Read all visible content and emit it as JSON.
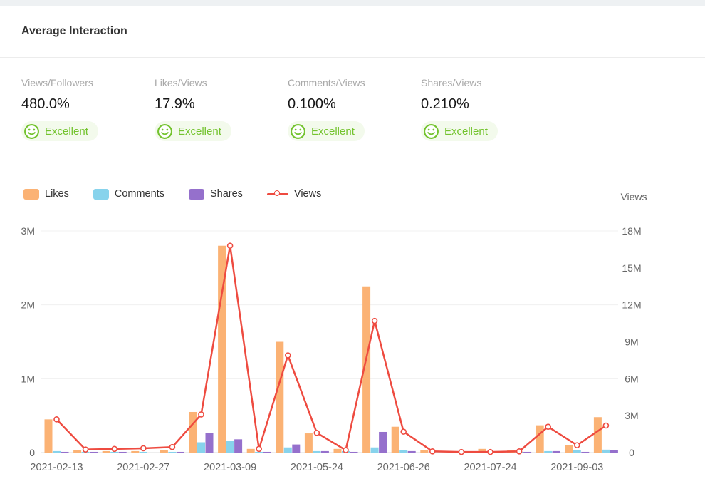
{
  "header": {
    "title": "Average Interaction"
  },
  "stats": [
    {
      "label": "Views/Followers",
      "value": "480.0%",
      "rating": "Excellent"
    },
    {
      "label": "Likes/Views",
      "value": "17.9%",
      "rating": "Excellent"
    },
    {
      "label": "Comments/Views",
      "value": "0.100%",
      "rating": "Excellent"
    },
    {
      "label": "Shares/Views",
      "value": "0.210%",
      "rating": "Excellent"
    }
  ],
  "colors": {
    "likes": "#fbb274",
    "comments": "#87d3ec",
    "shares": "#9570cc",
    "views": "#ee4b40",
    "positive": "#74c32f",
    "badge_bg": "#f3faec",
    "grid": "#f0f0f0",
    "axis_line": "#dcdcdc",
    "tick_text": "#666666"
  },
  "chart_data": {
    "type": "bar",
    "note": "grouped bars on left axis + line on right axis, values in millions",
    "legend": [
      "Likes",
      "Comments",
      "Shares",
      "Views"
    ],
    "legend_position": "top-left",
    "grid": true,
    "categories": [
      "2021-02-13",
      "",
      "",
      "2021-02-27",
      "",
      "",
      "2021-03-09",
      "",
      "",
      "2021-05-24",
      "",
      "",
      "2021-06-26",
      "",
      "",
      "2021-07-24",
      "",
      "",
      "2021-09-03",
      ""
    ],
    "series": [
      {
        "name": "Likes",
        "type": "bar",
        "axis": "left",
        "unit": "M",
        "values": [
          0.45,
          0.03,
          0.02,
          0.02,
          0.03,
          0.55,
          2.8,
          0.05,
          1.5,
          0.26,
          0.05,
          2.25,
          0.35,
          0.03,
          0.01,
          0.05,
          0.03,
          0.37,
          0.1,
          0.48
        ]
      },
      {
        "name": "Comments",
        "type": "bar",
        "axis": "left",
        "unit": "M",
        "values": [
          0.02,
          0.01,
          0.01,
          0.01,
          0.01,
          0.14,
          0.16,
          0.01,
          0.07,
          0.02,
          0.02,
          0.07,
          0.03,
          0,
          0,
          0.01,
          0.01,
          0.02,
          0.03,
          0.04
        ]
      },
      {
        "name": "Shares",
        "type": "bar",
        "axis": "left",
        "unit": "M",
        "values": [
          0.01,
          0.01,
          0.01,
          0,
          0.01,
          0.27,
          0.18,
          0.01,
          0.11,
          0.02,
          0.01,
          0.28,
          0.02,
          0,
          0,
          0,
          0.01,
          0.02,
          0.01,
          0.03
        ]
      },
      {
        "name": "Views",
        "type": "line",
        "axis": "right",
        "unit": "M",
        "values": [
          2.7,
          0.25,
          0.3,
          0.35,
          0.45,
          3.1,
          16.8,
          0.3,
          7.9,
          1.6,
          0.2,
          10.7,
          1.7,
          0.1,
          0.05,
          0.05,
          0.1,
          2.1,
          0.6,
          2.2
        ]
      }
    ],
    "left_axis": {
      "ticks": [
        "3M",
        "2M",
        "1M",
        "0"
      ],
      "lim": [
        0,
        3000000
      ]
    },
    "right_axis": {
      "name": "Views",
      "ticks": [
        "18M",
        "15M",
        "12M",
        "9M",
        "6M",
        "3M",
        "0"
      ],
      "lim": [
        0,
        18000000
      ]
    }
  }
}
